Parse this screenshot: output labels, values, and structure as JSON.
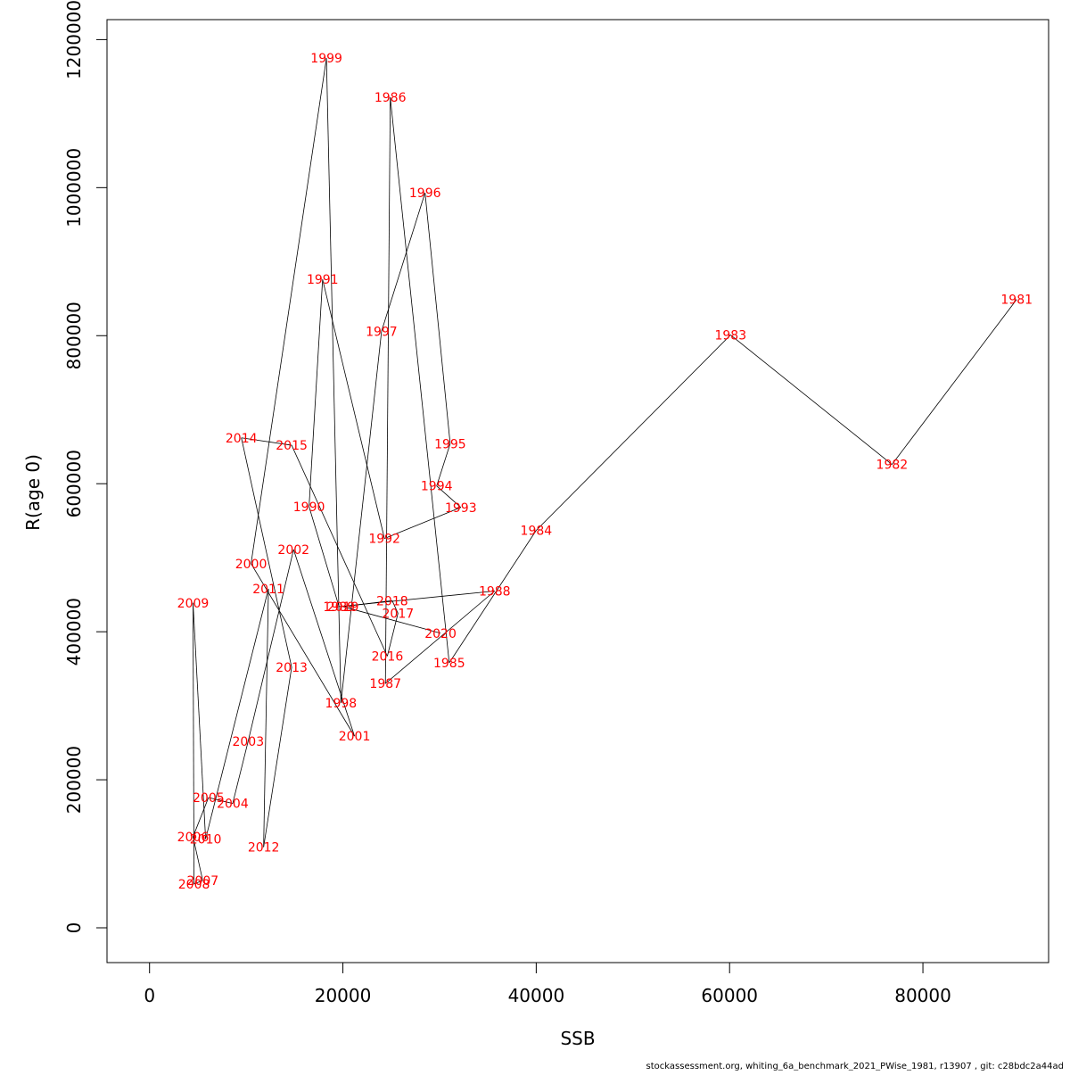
{
  "chart_data": {
    "type": "line",
    "xlabel": "SSB",
    "ylabel": "R(age 0)",
    "xlim": [
      -4400,
      93000
    ],
    "ylim": [
      -47000,
      1227000
    ],
    "x_ticks": [
      0,
      20000,
      40000,
      60000,
      80000
    ],
    "x_tick_labels": [
      "0",
      "20000",
      "40000",
      "60000",
      "80000"
    ],
    "y_ticks": [
      0,
      200000,
      400000,
      600000,
      800000,
      1000000,
      1200000
    ],
    "y_tick_labels": [
      "0",
      "200000",
      "400000",
      "600000",
      "800000",
      "1000000",
      "1200000"
    ],
    "line_color": "#000000",
    "label_color": "#ff0000",
    "series": [
      {
        "points": [
          {
            "label": "1981",
            "x": 89700,
            "y": 849000
          },
          {
            "label": "1982",
            "x": 76800,
            "y": 626000
          },
          {
            "label": "1983",
            "x": 60100,
            "y": 801000
          },
          {
            "label": "1984",
            "x": 40000,
            "y": 537000
          },
          {
            "label": "1985",
            "x": 31000,
            "y": 358000
          },
          {
            "label": "1986",
            "x": 24900,
            "y": 1122000
          },
          {
            "label": "1987",
            "x": 24400,
            "y": 330000
          },
          {
            "label": "1988",
            "x": 35700,
            "y": 455000
          },
          {
            "label": "1989",
            "x": 19600,
            "y": 434000
          },
          {
            "label": "1990",
            "x": 16500,
            "y": 569000
          },
          {
            "label": "1991",
            "x": 17900,
            "y": 876000
          },
          {
            "label": "1992",
            "x": 24300,
            "y": 526000
          },
          {
            "label": "1993",
            "x": 32200,
            "y": 568000
          },
          {
            "label": "1994",
            "x": 29700,
            "y": 597000
          },
          {
            "label": "1995",
            "x": 31100,
            "y": 654000
          },
          {
            "label": "1996",
            "x": 28500,
            "y": 993000
          },
          {
            "label": "1997",
            "x": 24000,
            "y": 806000
          },
          {
            "label": "1998",
            "x": 19800,
            "y": 304000
          },
          {
            "label": "1999",
            "x": 18300,
            "y": 1175000
          },
          {
            "label": "2000",
            "x": 10500,
            "y": 492000
          },
          {
            "label": "2001",
            "x": 21200,
            "y": 259000
          },
          {
            "label": "2002",
            "x": 14900,
            "y": 511000
          },
          {
            "label": "2003",
            "x": 10200,
            "y": 252000
          },
          {
            "label": "2004",
            "x": 8600,
            "y": 168000
          },
          {
            "label": "2005",
            "x": 6100,
            "y": 176000
          },
          {
            "label": "2006",
            "x": 4500,
            "y": 123000
          },
          {
            "label": "2007",
            "x": 5500,
            "y": 64000
          },
          {
            "label": "2008",
            "x": 4600,
            "y": 59000
          },
          {
            "label": "2009",
            "x": 4500,
            "y": 439000
          },
          {
            "label": "2010",
            "x": 5800,
            "y": 120000
          },
          {
            "label": "2011",
            "x": 12300,
            "y": 458000
          },
          {
            "label": "2012",
            "x": 11800,
            "y": 109000
          },
          {
            "label": "2013",
            "x": 14700,
            "y": 352000
          },
          {
            "label": "2014",
            "x": 9500,
            "y": 662000
          },
          {
            "label": "2015",
            "x": 14700,
            "y": 652000
          },
          {
            "label": "2016",
            "x": 24600,
            "y": 367000
          },
          {
            "label": "2017",
            "x": 25700,
            "y": 425000
          },
          {
            "label": "2018",
            "x": 25100,
            "y": 442000
          },
          {
            "label": "2019",
            "x": 20000,
            "y": 434000
          },
          {
            "label": "2020",
            "x": 30100,
            "y": 398000
          }
        ]
      }
    ]
  },
  "footer": {
    "text": "stockassessment.org, whiting_6a_benchmark_2021_PWise_1981, r13907 , git: c28bdc2a44ad"
  }
}
